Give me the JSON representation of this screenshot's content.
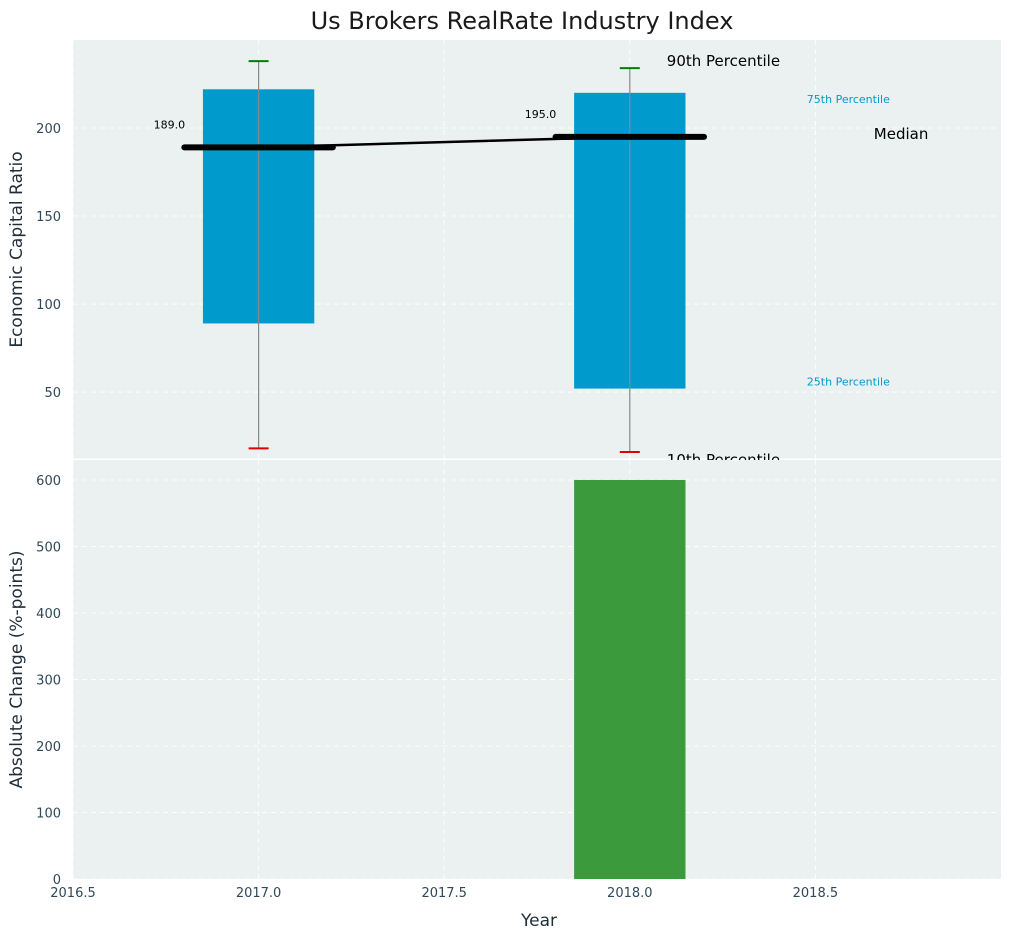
{
  "title": "Us Brokers RealRate Industry Index",
  "colors": {
    "box": "#009acd",
    "median": "#000000",
    "whisker_top": "#008000",
    "whisker_bottom": "#e00000",
    "whisker_line": "#7f8c8d",
    "change_bar": "#3a9a3c",
    "panel_bg": "#ebf0f0",
    "grid": "#ffffff"
  },
  "chart_data": [
    {
      "type": "box",
      "ylabel": "Economic Capital Ratio",
      "xlim": [
        2016.5,
        2019.0
      ],
      "ylim": [
        12,
        250
      ],
      "yticks": [
        50,
        100,
        150,
        200
      ],
      "boxes": [
        {
          "x": 2017,
          "p10": 18,
          "p25": 89,
          "median": 189,
          "p75": 222,
          "p90": 238,
          "label": "189.0"
        },
        {
          "x": 2018,
          "p10": 16,
          "p25": 52,
          "median": 195,
          "p75": 220,
          "p90": 234,
          "label": "195.0"
        }
      ],
      "legend_annotations": {
        "p90": "90th Percentile",
        "p75": "75th Percentile",
        "median": "Median",
        "p25": "25th Percentile",
        "p10": "10th Percentile"
      }
    },
    {
      "type": "bar",
      "xlabel": "Year",
      "ylabel": "Absolute Change (%-points)",
      "xlim": [
        2016.5,
        2019.0
      ],
      "ylim": [
        0,
        630
      ],
      "yticks": [
        0,
        100,
        200,
        300,
        400,
        500,
        600
      ],
      "xticks": [
        2016.5,
        2017.0,
        2017.5,
        2018.0,
        2018.5
      ],
      "xtick_labels": [
        "2016.5",
        "2017.0",
        "2017.5",
        "2018.0",
        "2018.5"
      ],
      "bars": [
        {
          "x": 2018,
          "value": 600
        }
      ]
    }
  ]
}
